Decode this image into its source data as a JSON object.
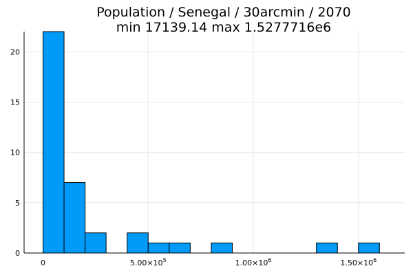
{
  "chart_data": {
    "type": "bar",
    "title_lines": [
      "Population / Senegal / 30arcmin / 2070",
      "min 17139.14  max 1.5277716e6"
    ],
    "bin_width": 100000,
    "bins": [
      {
        "start": 0,
        "count": 22
      },
      {
        "start": 100000,
        "count": 7
      },
      {
        "start": 200000,
        "count": 2
      },
      {
        "start": 400000,
        "count": 2
      },
      {
        "start": 500000,
        "count": 1
      },
      {
        "start": 600000,
        "count": 1
      },
      {
        "start": 800000,
        "count": 1
      },
      {
        "start": 1300000,
        "count": 1
      },
      {
        "start": 1500000,
        "count": 1
      }
    ],
    "xlim": [
      -90000,
      1720000
    ],
    "ylim": [
      0,
      22
    ],
    "xticks": [
      {
        "value": 0,
        "base": "0",
        "exp": ""
      },
      {
        "value": 500000,
        "base": "5.00×10",
        "exp": "5"
      },
      {
        "value": 1000000,
        "base": "1.00×10",
        "exp": "6"
      },
      {
        "value": 1500000,
        "base": "1.50×10",
        "exp": "6"
      }
    ],
    "yticks": [
      0,
      5,
      10,
      15,
      20
    ],
    "grid": true,
    "legend": false
  }
}
